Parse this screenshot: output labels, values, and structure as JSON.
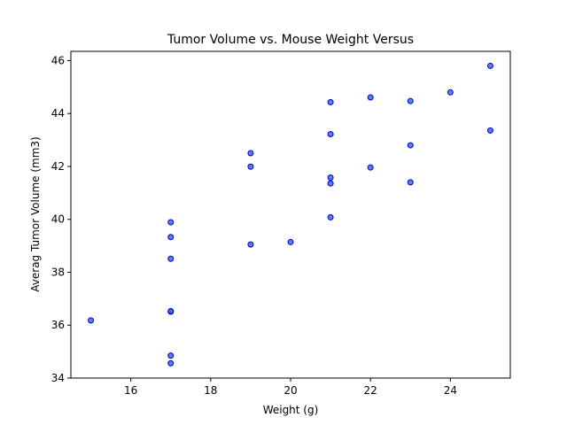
{
  "chart_data": {
    "type": "scatter",
    "title": "Tumor Volume vs. Mouse Weight Versus",
    "xlabel": "Weight (g)",
    "ylabel": "Averag Tumor Volume (mm3)",
    "xlim": [
      14.5,
      25.5
    ],
    "ylim": [
      34,
      46.35
    ],
    "xticks": [
      16,
      18,
      20,
      22,
      24
    ],
    "yticks": [
      34,
      36,
      38,
      40,
      42,
      44,
      46
    ],
    "grid": false,
    "marker_fill": "#4169e1",
    "marker_edge": "#0000cd",
    "points": [
      {
        "x": 15,
        "y": 36.18
      },
      {
        "x": 17,
        "y": 34.56
      },
      {
        "x": 17,
        "y": 34.85
      },
      {
        "x": 17,
        "y": 36.51
      },
      {
        "x": 17,
        "y": 36.53
      },
      {
        "x": 17,
        "y": 38.51
      },
      {
        "x": 17,
        "y": 39.33
      },
      {
        "x": 17,
        "y": 39.89
      },
      {
        "x": 19,
        "y": 39.05
      },
      {
        "x": 19,
        "y": 41.99
      },
      {
        "x": 19,
        "y": 42.5
      },
      {
        "x": 20,
        "y": 39.14
      },
      {
        "x": 21,
        "y": 40.08
      },
      {
        "x": 21,
        "y": 41.36
      },
      {
        "x": 21,
        "y": 41.58
      },
      {
        "x": 21,
        "y": 43.22
      },
      {
        "x": 21,
        "y": 44.43
      },
      {
        "x": 22,
        "y": 41.96
      },
      {
        "x": 22,
        "y": 44.61
      },
      {
        "x": 23,
        "y": 41.4
      },
      {
        "x": 23,
        "y": 42.8
      },
      {
        "x": 23,
        "y": 44.47
      },
      {
        "x": 24,
        "y": 44.8
      },
      {
        "x": 25,
        "y": 43.36
      },
      {
        "x": 25,
        "y": 45.8
      }
    ]
  }
}
